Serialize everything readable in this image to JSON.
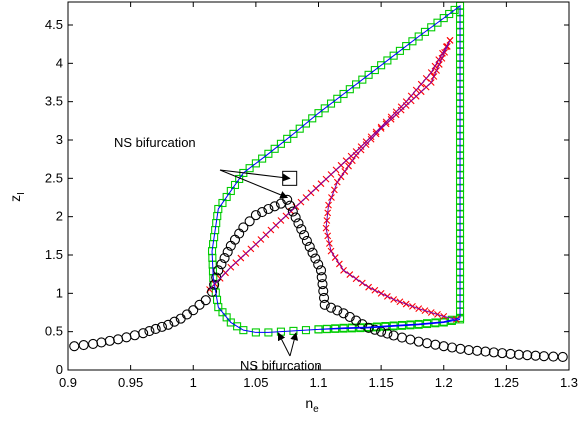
{
  "chart_data": {
    "type": "scatter",
    "xlabel": "n",
    "xlabel_sub": "e",
    "ylabel": "z",
    "ylabel_sub": "I",
    "xlim": [
      0.9,
      1.3
    ],
    "ylim": [
      0,
      4.8
    ],
    "x_ticks": [
      0.9,
      0.95,
      1,
      1.05,
      1.1,
      1.15,
      1.2,
      1.25,
      1.3
    ],
    "x_tick_labels": [
      "0.9",
      "0.95",
      "1",
      "1.05",
      "1.1",
      "1.15",
      "1.2",
      "1.25",
      "1.3"
    ],
    "y_ticks": [
      0,
      0.5,
      1,
      1.5,
      2,
      2.5,
      3,
      3.5,
      4,
      4.5
    ],
    "y_tick_labels": [
      "0",
      "0.5",
      "1",
      "1.5",
      "2",
      "2.5",
      "3",
      "3.5",
      "4",
      "4.5"
    ],
    "grid": false,
    "annotations": [
      {
        "text": "NS bifurcation",
        "target": "upper-branch",
        "points": [
          [
            1.077,
            2.5
          ],
          [
            1.075,
            2.25
          ]
        ]
      },
      {
        "text": "NS bifurcation",
        "target": "lower-branch",
        "points": [
          [
            1.068,
            0.52
          ],
          [
            1.082,
            0.52
          ]
        ]
      }
    ],
    "series": [
      {
        "marker": "square",
        "color": "#00cc00",
        "line_color": "#0000ff",
        "x": [
          1.1,
          1.12,
          1.14,
          1.16,
          1.18,
          1.2,
          1.213,
          1.213,
          1.2,
          1.18,
          1.16,
          1.14,
          1.12,
          1.1,
          1.08,
          1.06,
          1.04,
          1.02,
          1.015,
          1.016,
          1.02,
          1.03,
          1.04,
          1.05,
          1.06,
          1.07,
          1.08,
          1.09,
          1.1,
          1.12,
          1.14,
          1.16,
          1.18,
          1.2,
          1.213
        ],
        "y": [
          0.53,
          0.55,
          0.56,
          0.58,
          0.6,
          0.63,
          0.68,
          4.75,
          4.59,
          4.35,
          4.1,
          3.85,
          3.6,
          3.35,
          3.08,
          2.82,
          2.57,
          2.1,
          1.55,
          1.2,
          0.82,
          0.62,
          0.52,
          0.49,
          0.49,
          0.5,
          0.51,
          0.52,
          0.53,
          0.54,
          0.55,
          0.57,
          0.59,
          0.62,
          0.66
        ]
      },
      {
        "marker": "x",
        "color": "#ff0000",
        "line_color": "#7a00aa",
        "x": [
          1.013,
          1.03,
          1.05,
          1.07,
          1.09,
          1.11,
          1.13,
          1.15,
          1.17,
          1.19,
          1.205,
          1.205,
          1.19,
          1.17,
          1.15,
          1.13,
          1.115,
          1.108,
          1.106,
          1.11,
          1.12,
          1.14,
          1.16,
          1.18,
          1.2,
          1.21
        ],
        "y": [
          1.05,
          1.34,
          1.64,
          1.95,
          2.25,
          2.55,
          2.85,
          3.17,
          3.5,
          3.88,
          4.3,
          4.3,
          3.75,
          3.45,
          3.15,
          2.8,
          2.45,
          2.15,
          1.85,
          1.55,
          1.3,
          1.08,
          0.92,
          0.8,
          0.7,
          0.66
        ]
      },
      {
        "marker": "circle",
        "color": "#000000",
        "x": [
          0.905,
          0.92,
          0.94,
          0.96,
          0.98,
          0.99,
          1.0,
          1.005,
          1.01,
          1.015,
          1.02,
          1.03,
          1.04,
          1.05,
          1.06,
          1.07,
          1.075,
          1.102,
          1.105,
          1.12,
          1.14,
          1.16,
          1.18,
          1.2,
          1.22,
          1.24,
          1.26,
          1.28,
          1.295
        ],
        "y": [
          0.31,
          0.34,
          0.4,
          0.48,
          0.59,
          0.67,
          0.78,
          0.85,
          0.91,
          1.02,
          1.3,
          1.62,
          1.86,
          2.02,
          2.1,
          2.17,
          2.22,
          1.3,
          0.85,
          0.74,
          0.55,
          0.45,
          0.37,
          0.31,
          0.26,
          0.23,
          0.2,
          0.18,
          0.17
        ]
      }
    ]
  }
}
